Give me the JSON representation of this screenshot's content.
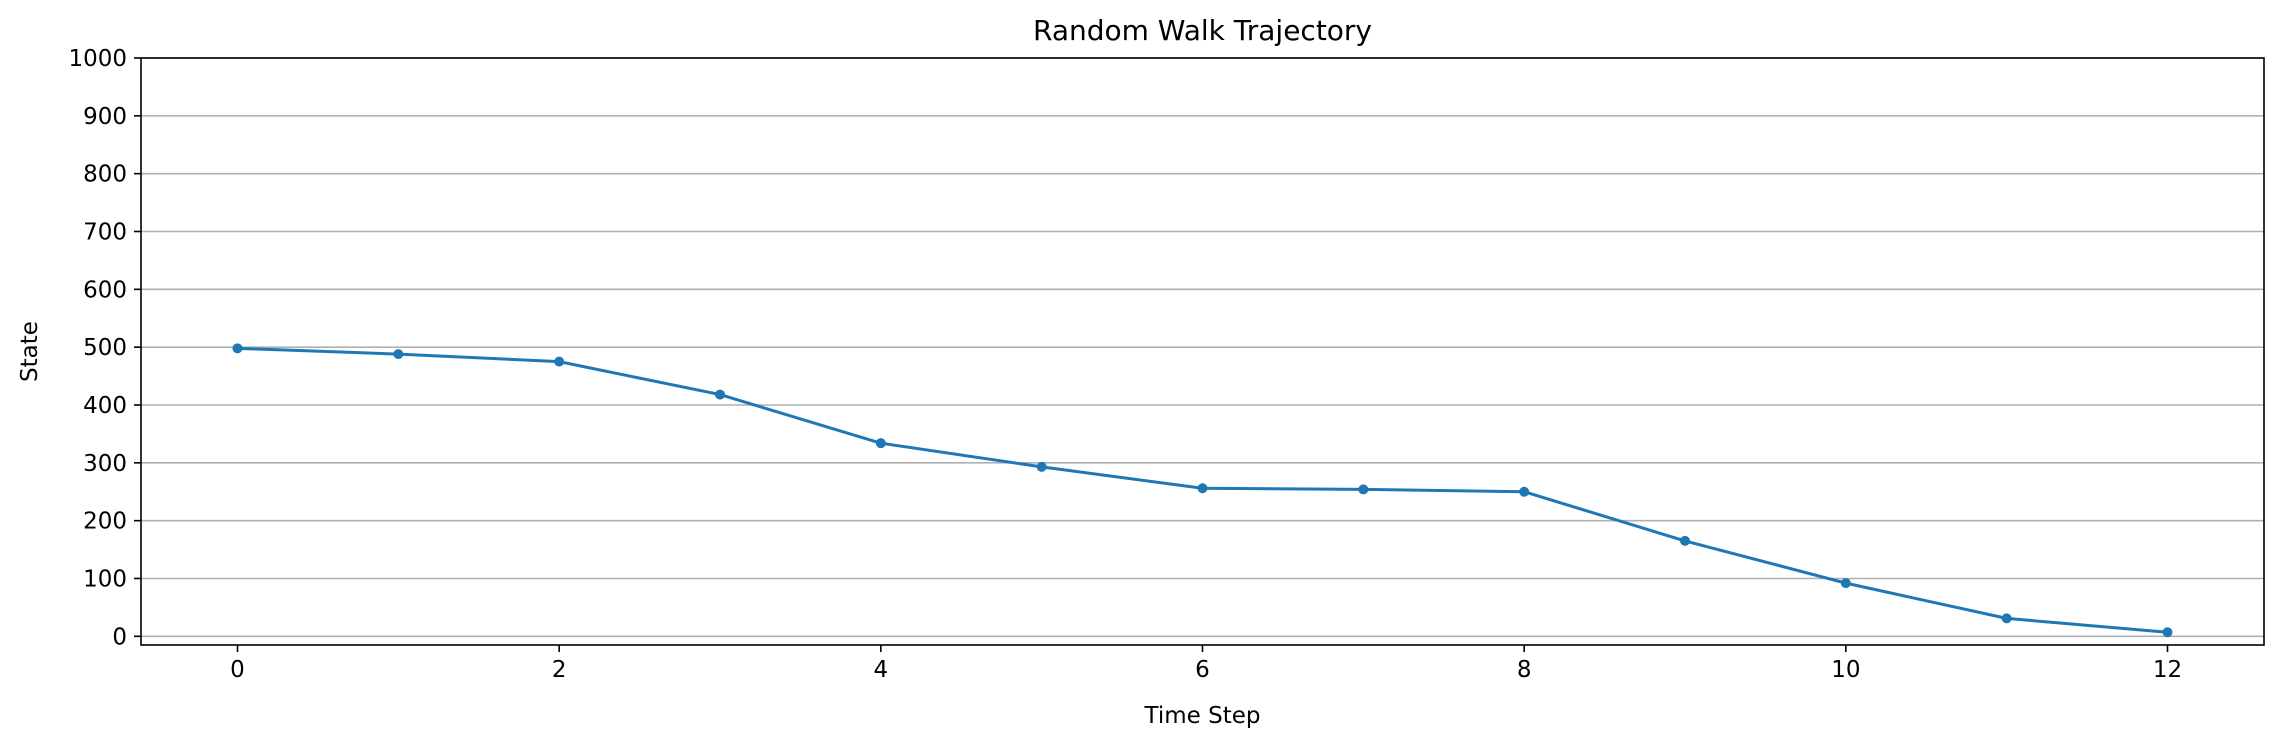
{
  "chart_data": {
    "type": "line",
    "title": "Random Walk Trajectory",
    "xlabel": "Time Step",
    "ylabel": "State",
    "x": [
      0,
      1,
      2,
      3,
      4,
      5,
      6,
      7,
      8,
      9,
      10,
      11,
      12
    ],
    "series": [
      {
        "values": [
          498,
          488,
          475,
          418,
          334,
          293,
          256,
          254,
          250,
          165,
          92,
          31,
          7
        ],
        "color": "#1f77b4",
        "marker": "circle"
      }
    ],
    "xlim": [
      -0.6,
      12.6
    ],
    "ylim": [
      -15,
      1000
    ],
    "xticks": [
      0,
      2,
      4,
      6,
      8,
      10,
      12
    ],
    "yticks": [
      0,
      100,
      200,
      300,
      400,
      500,
      600,
      700,
      800,
      900,
      1000
    ],
    "grid": "horizontal",
    "legend": false
  }
}
